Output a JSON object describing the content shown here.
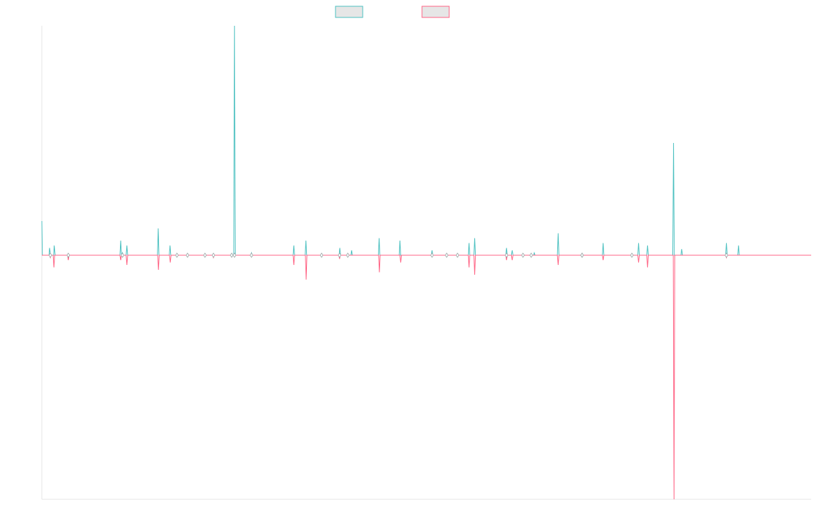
{
  "chart_data": {
    "type": "line",
    "title": "",
    "xlabel": "",
    "ylabel": "",
    "ylim": [
      -100,
      94
    ],
    "grid": false,
    "legend_position": "top",
    "series": [
      {
        "name": "",
        "color": "#4bc0c0",
        "fill": "#e6e6e6",
        "points": [
          [
            0,
            14
          ],
          [
            0.2,
            0
          ],
          [
            2.8,
            0
          ],
          [
            3.0,
            3
          ],
          [
            3.4,
            0
          ],
          [
            4.6,
            0
          ],
          [
            4.8,
            4
          ],
          [
            5.2,
            0
          ],
          [
            30.4,
            0
          ],
          [
            30.7,
            6
          ],
          [
            31.0,
            0
          ],
          [
            31.4,
            1
          ],
          [
            31.6,
            0
          ],
          [
            32.8,
            0
          ],
          [
            33.1,
            4
          ],
          [
            33.4,
            0
          ],
          [
            45.0,
            0
          ],
          [
            45.3,
            11
          ],
          [
            45.6,
            0
          ],
          [
            49.6,
            0
          ],
          [
            49.9,
            4
          ],
          [
            50.2,
            0
          ],
          [
            74.7,
            0
          ],
          [
            75.0,
            94
          ],
          [
            75.3,
            0
          ],
          [
            81.3,
            0
          ],
          [
            81.6,
            1
          ],
          [
            81.9,
            0
          ],
          [
            97.8,
            0
          ],
          [
            98.1,
            4
          ],
          [
            98.4,
            0
          ],
          [
            102.5,
            0
          ],
          [
            102.8,
            6
          ],
          [
            103.1,
            0
          ],
          [
            115.7,
            0
          ],
          [
            116.0,
            3
          ],
          [
            116.3,
            0
          ],
          [
            120.3,
            0
          ],
          [
            120.6,
            2
          ],
          [
            120.9,
            0
          ],
          [
            131.0,
            0
          ],
          [
            131.3,
            7
          ],
          [
            131.6,
            0
          ],
          [
            139.1,
            0
          ],
          [
            139.4,
            6
          ],
          [
            139.7,
            0
          ],
          [
            151.6,
            0
          ],
          [
            151.9,
            2
          ],
          [
            152.2,
            0
          ],
          [
            166.0,
            0
          ],
          [
            166.3,
            5
          ],
          [
            166.6,
            0
          ],
          [
            168.2,
            0
          ],
          [
            168.5,
            7
          ],
          [
            168.8,
            0
          ],
          [
            180.6,
            0
          ],
          [
            180.9,
            3
          ],
          [
            181.2,
            0
          ],
          [
            182.8,
            0
          ],
          [
            183.1,
            2
          ],
          [
            183.4,
            0
          ],
          [
            191.4,
            0
          ],
          [
            191.7,
            1
          ],
          [
            192.0,
            0
          ],
          [
            200.7,
            0
          ],
          [
            201.0,
            9
          ],
          [
            201.3,
            0
          ],
          [
            218.2,
            0
          ],
          [
            218.5,
            5
          ],
          [
            218.8,
            0
          ],
          [
            232.0,
            0
          ],
          [
            232.3,
            5
          ],
          [
            232.6,
            0
          ],
          [
            235.5,
            0
          ],
          [
            235.8,
            4
          ],
          [
            236.1,
            0
          ],
          [
            245.6,
            0
          ],
          [
            245.9,
            46
          ],
          [
            246.2,
            0
          ],
          [
            248.8,
            0
          ],
          [
            249.1,
            2.5
          ],
          [
            249.4,
            0
          ],
          [
            266.2,
            0
          ],
          [
            266.5,
            5
          ],
          [
            266.8,
            0
          ],
          [
            270.9,
            0
          ],
          [
            271.2,
            4
          ],
          [
            271.5,
            0
          ],
          [
            299.5,
            0
          ]
        ]
      },
      {
        "name": "",
        "color": "#ff6384",
        "fill": "#e6e6e6",
        "points": [
          [
            0,
            0
          ],
          [
            3.0,
            0
          ],
          [
            3.3,
            -1
          ],
          [
            3.6,
            0
          ],
          [
            4.4,
            0
          ],
          [
            4.7,
            -5
          ],
          [
            5.0,
            0
          ],
          [
            10.0,
            0
          ],
          [
            10.3,
            -2
          ],
          [
            10.6,
            0
          ],
          [
            30.4,
            0
          ],
          [
            30.7,
            -2
          ],
          [
            31.0,
            0
          ],
          [
            32.8,
            0
          ],
          [
            33.1,
            -4
          ],
          [
            33.4,
            0
          ],
          [
            45.1,
            0
          ],
          [
            45.4,
            -6
          ],
          [
            45.7,
            0
          ],
          [
            49.7,
            0
          ],
          [
            50.0,
            -3
          ],
          [
            50.3,
            0
          ],
          [
            66.5,
            0
          ],
          [
            66.8,
            -1
          ],
          [
            67.1,
            0
          ],
          [
            97.8,
            0
          ],
          [
            98.1,
            -4
          ],
          [
            98.4,
            0
          ],
          [
            102.6,
            0
          ],
          [
            102.9,
            -10
          ],
          [
            103.2,
            0
          ],
          [
            115.6,
            0
          ],
          [
            115.9,
            -1.5
          ],
          [
            116.2,
            0
          ],
          [
            131.1,
            0
          ],
          [
            131.4,
            -7
          ],
          [
            131.7,
            0
          ],
          [
            139.4,
            0
          ],
          [
            139.7,
            -3
          ],
          [
            140.0,
            0
          ],
          [
            166.0,
            0
          ],
          [
            166.3,
            -5
          ],
          [
            166.6,
            0
          ],
          [
            168.2,
            0
          ],
          [
            168.5,
            -8
          ],
          [
            168.8,
            0
          ],
          [
            180.6,
            0
          ],
          [
            180.9,
            -2
          ],
          [
            181.2,
            0
          ],
          [
            182.8,
            0
          ],
          [
            183.1,
            -2
          ],
          [
            183.4,
            0
          ],
          [
            200.7,
            0
          ],
          [
            201.0,
            -4
          ],
          [
            201.3,
            0
          ],
          [
            218.2,
            0
          ],
          [
            218.5,
            -2
          ],
          [
            218.8,
            0
          ],
          [
            232.0,
            0
          ],
          [
            232.3,
            -3
          ],
          [
            232.6,
            0
          ],
          [
            235.5,
            0
          ],
          [
            235.8,
            -5
          ],
          [
            236.1,
            0
          ],
          [
            245.8,
            0
          ],
          [
            246.1,
            -100
          ],
          [
            246.4,
            0
          ],
          [
            266.2,
            0
          ],
          [
            266.5,
            -1
          ],
          [
            266.8,
            0
          ],
          [
            299.5,
            0
          ]
        ]
      }
    ],
    "x_range": [
      0,
      299.5
    ],
    "markers": [
      {
        "x": 3.3,
        "y": 0
      },
      {
        "x": 10.3,
        "y": 0
      },
      {
        "x": 31.4,
        "y": 0
      },
      {
        "x": 52.6,
        "y": 0
      },
      {
        "x": 56.7,
        "y": 0
      },
      {
        "x": 63.5,
        "y": 0
      },
      {
        "x": 66.8,
        "y": 0
      },
      {
        "x": 73.9,
        "y": 0
      },
      {
        "x": 75.0,
        "y": 0
      },
      {
        "x": 81.6,
        "y": 0
      },
      {
        "x": 108.9,
        "y": 0
      },
      {
        "x": 115.9,
        "y": 0
      },
      {
        "x": 119.1,
        "y": 0
      },
      {
        "x": 151.9,
        "y": 0
      },
      {
        "x": 157.6,
        "y": 0
      },
      {
        "x": 161.8,
        "y": 0
      },
      {
        "x": 180.9,
        "y": 0
      },
      {
        "x": 187.3,
        "y": 0
      },
      {
        "x": 190.5,
        "y": 0
      },
      {
        "x": 210.3,
        "y": 0
      },
      {
        "x": 210.3,
        "y": 0
      },
      {
        "x": 229.7,
        "y": 0
      },
      {
        "x": 266.5,
        "y": 0
      }
    ]
  }
}
